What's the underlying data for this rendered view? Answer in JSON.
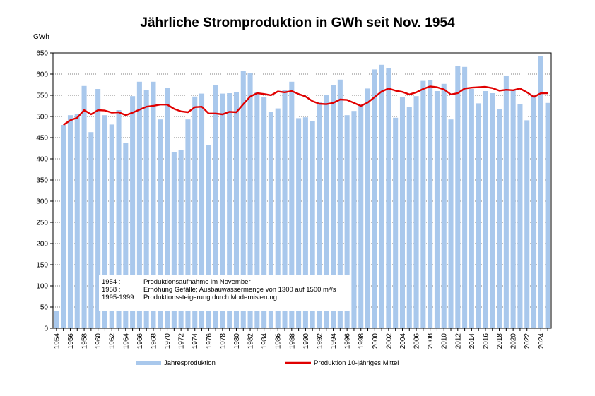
{
  "chart_data": {
    "type": "bar",
    "title": "Jährliche Stromproduktion in GWh seit Nov. 1954",
    "ylabel": "GWh",
    "xlabel": "",
    "ylim": [
      0,
      650
    ],
    "yticks": [
      0,
      50,
      100,
      150,
      200,
      250,
      300,
      350,
      400,
      450,
      500,
      550,
      600,
      650
    ],
    "grid": true,
    "legend_position": "bottom",
    "colors": {
      "bar": "#a9c8ec",
      "line": "#e00000"
    },
    "categories": [
      1954,
      1955,
      1956,
      1957,
      1958,
      1959,
      1960,
      1961,
      1962,
      1963,
      1964,
      1965,
      1966,
      1967,
      1968,
      1969,
      1970,
      1971,
      1972,
      1973,
      1974,
      1975,
      1976,
      1977,
      1978,
      1979,
      1980,
      1981,
      1982,
      1983,
      1984,
      1985,
      1986,
      1987,
      1988,
      1989,
      1990,
      1991,
      1992,
      1993,
      1994,
      1995,
      1996,
      1997,
      1998,
      1999,
      2000,
      2001,
      2002,
      2003,
      2004,
      2005,
      2006,
      2007,
      2008,
      2009,
      2010,
      2011,
      2012,
      2013,
      2014,
      2015,
      2016,
      2017,
      2018,
      2019,
      2020,
      2021,
      2022,
      2023,
      2024,
      2025
    ],
    "xtick_labels": [
      "1954",
      "1956",
      "1958",
      "1960",
      "1962",
      "1964",
      "1966",
      "1968",
      "1970",
      "1972",
      "1974",
      "1976",
      "1978",
      "1980",
      "1982",
      "1984",
      "1986",
      "1988",
      "1990",
      "1992",
      "1994",
      "1996",
      "1998",
      "2000",
      "2002",
      "2004",
      "2006",
      "2008",
      "2010",
      "2012",
      "2014",
      "2016",
      "2018",
      "2020",
      "2022",
      "2024"
    ],
    "series": [
      {
        "name": "Jahresproduktion",
        "kind": "bar",
        "values": [
          40,
          480,
          503,
          505,
          572,
          463,
          565,
          503,
          481,
          515,
          437,
          548,
          582,
          563,
          582,
          493,
          567,
          415,
          420,
          493,
          547,
          554,
          432,
          574,
          554,
          555,
          557,
          607,
          602,
          557,
          545,
          510,
          519,
          562,
          582,
          496,
          498,
          490,
          533,
          550,
          574,
          587,
          503,
          513,
          528,
          566,
          611,
          622,
          615,
          497,
          545,
          522,
          548,
          584,
          585,
          560,
          577,
          493,
          620,
          617,
          565,
          531,
          560,
          555,
          518,
          595,
          562,
          529,
          491,
          549,
          642,
          532
        ]
      },
      {
        "name": "Produktion 10-jähriges Mittel",
        "kind": "line",
        "values": [
          null,
          480,
          491,
          497,
          515,
          505,
          515,
          514,
          509,
          510,
          503,
          509,
          516,
          523,
          525,
          528,
          528,
          518,
          512,
          510,
          522,
          523,
          507,
          507,
          505,
          511,
          510,
          529,
          547,
          555,
          553,
          550,
          559,
          557,
          560,
          553,
          547,
          536,
          530,
          529,
          532,
          540,
          539,
          532,
          525,
          533,
          546,
          559,
          566,
          561,
          558,
          552,
          557,
          565,
          571,
          569,
          564,
          552,
          555,
          566,
          568,
          569,
          570,
          567,
          561,
          563,
          562,
          566,
          557,
          546,
          555,
          555
        ]
      }
    ],
    "annotation": [
      {
        "year": "1954 :",
        "text": "Produktionsaufnahme im November"
      },
      {
        "year": "1958 :",
        "text": "Erhöhung Gefälle; Ausbauwassermenge von 1300 auf 1500 m³/s"
      },
      {
        "year": "1995-1999 :",
        "text": "Produktionssteigerung durch Modernisierung"
      }
    ]
  }
}
